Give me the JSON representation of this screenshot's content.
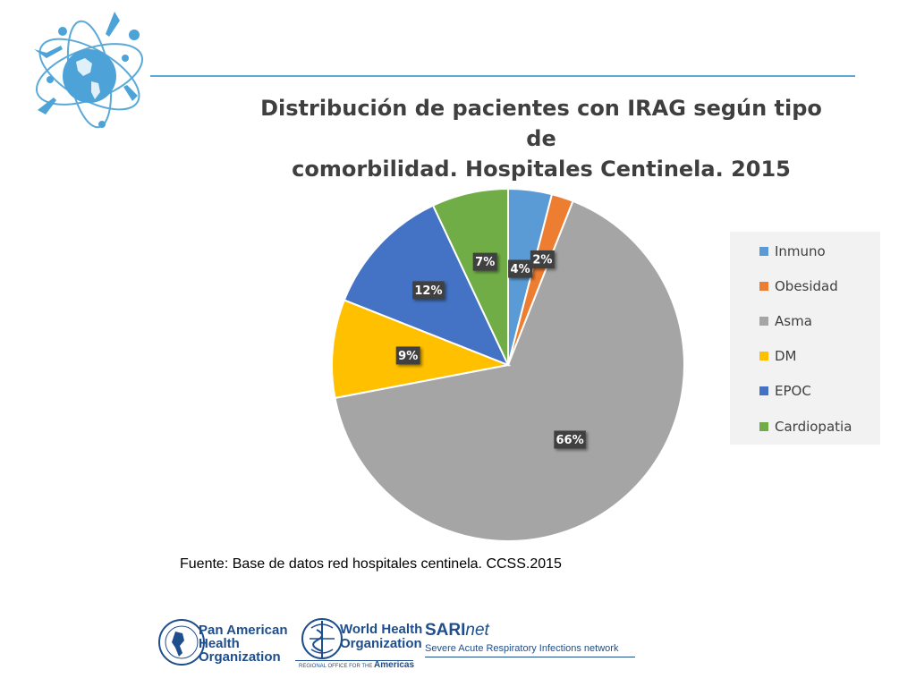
{
  "colors": {
    "inmuno": "#5b9bd5",
    "obesidad": "#ed7d31",
    "asma": "#a5a5a5",
    "dm": "#ffc000",
    "epoc": "#4472c4",
    "cardiopatia": "#70ad47",
    "rule": "#5aa9d8",
    "brand_blue": "#1f4e8c"
  },
  "icons": {
    "top_logo": "world-health-day-globe-icon",
    "paho_logo": "paho-emblem-icon",
    "who_logo": "who-emblem-icon"
  },
  "chart_data": {
    "type": "pie",
    "title": "Distribución de pacientes con IRAG según tipo de comorbilidad. Hospitales Centinela. 2015",
    "title_lines": [
      "Distribución de pacientes con IRAG según tipo de",
      "comorbilidad. Hospitales Centinela. 2015"
    ],
    "categories": [
      "Inmuno",
      "Obesidad",
      "Asma",
      "DM",
      "EPOC",
      "Cardiopatia"
    ],
    "values": [
      4,
      2,
      66,
      9,
      12,
      7
    ],
    "labels": [
      "4%",
      "2%",
      "66%",
      "9%",
      "12%",
      "7%"
    ],
    "legend_position": "right"
  },
  "source": "Fuente: Base de datos red hospitales centinela. CCSS.2015",
  "footer": {
    "paho_lines": [
      "Pan American",
      "Health",
      "Organization"
    ],
    "who_lines": [
      "World Health",
      "Organization"
    ],
    "who_regional": "REGIONAL OFFICE FOR THE",
    "who_region": "Americas",
    "sari_prefix": "SARI",
    "sari_suffix": "net",
    "sari_tagline": "Severe Acute Respiratory Infections network"
  }
}
